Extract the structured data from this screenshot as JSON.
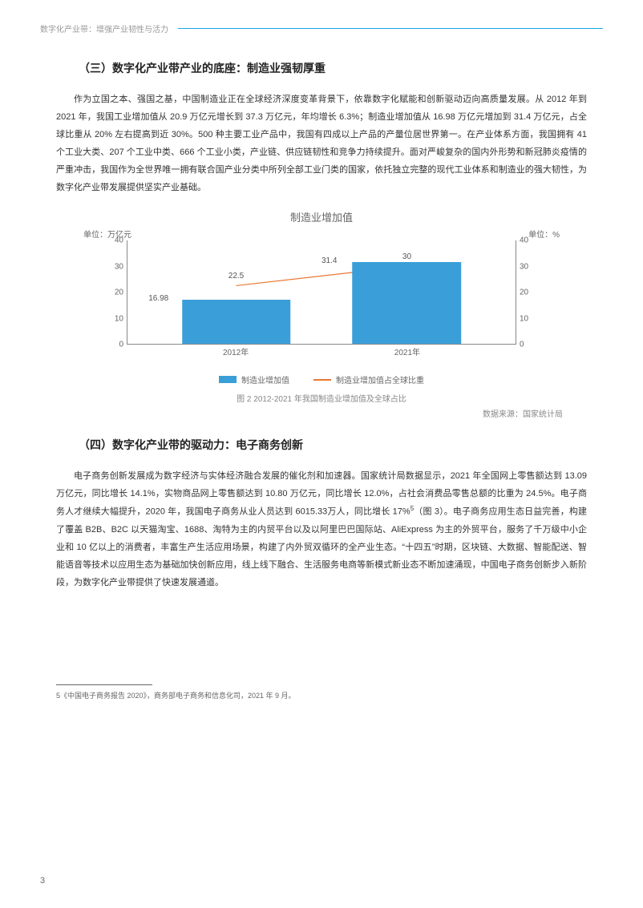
{
  "header": {
    "title": "数字化产业带：增强产业韧性与活力"
  },
  "section3": {
    "heading": "（三）数字化产业带产业的底座：制造业强韧厚重",
    "para": "作为立国之本、强国之基，中国制造业正在全球经济深度变革背景下，依靠数字化赋能和创新驱动迈向高质量发展。从 2012 年到 2021 年，我国工业增加值从 20.9 万亿元增长到 37.3 万亿元，年均增长 6.3%；制造业增加值从 16.98 万亿元增加到 31.4 万亿元，占全球比重从 20% 左右提高到近 30%。500 种主要工业产品中，我国有四成以上产品的产量位居世界第一。在产业体系方面，我国拥有 41 个工业大类、207 个工业中类、666 个工业小类，产业链、供应链韧性和竞争力持续提升。面对严峻复杂的国内外形势和新冠肺炎疫情的严重冲击，我国作为全世界唯一拥有联合国产业分类中所列全部工业门类的国家，依托独立完整的现代工业体系和制造业的强大韧性，为数字化产业带发展提供坚实产业基础。"
  },
  "chart": {
    "title": "制造业增加值",
    "unit_left_label": "单位：万亿元",
    "unit_right_label": "单位：%",
    "type": "bar+line",
    "categories": [
      "2012年",
      "2021年"
    ],
    "bar_values": [
      16.98,
      31.4
    ],
    "line_values": [
      22.5,
      30
    ],
    "ylim_left": [
      0,
      40
    ],
    "ylim_right": [
      0,
      40
    ],
    "ytick_step": 10,
    "yticks": [
      0,
      10,
      20,
      30,
      40
    ],
    "bar_color": "#3a9fd8",
    "line_color": "#e97832",
    "bar_width_pct": 28,
    "cat_positions_pct": [
      28,
      72
    ],
    "background_color": "#ffffff",
    "axis_color": "#888888",
    "text_color": "#666666",
    "legend": {
      "bar_label": "制造业增加值",
      "line_label": "制造业增加值占全球比重"
    },
    "caption": "图 2  2012-2021 年我国制造业增加值及全球占比",
    "source": "数据来源：国家统计局"
  },
  "section4": {
    "heading": "（四）数字化产业带的驱动力：电子商务创新",
    "para_html": "电子商务创新发展成为数字经济与实体经济融合发展的催化剂和加速器。国家统计局数据显示，2021 年全国网上零售额达到 13.09 万亿元，同比增长 14.1%，实物商品网上零售额达到 10.80 万亿元，同比增长 12.0%，占社会消费品零售总额的比重为 24.5%。电子商务人才继续大幅提升，2020 年，我国电子商务从业人员达到 6015.33万人，同比增长 17%<sup>5</sup>（图 3）。电子商务应用生态日益完善，构建了覆盖 B2B、B2C 以天猫淘宝、1688、淘特为主的内贸平台以及以阿里巴巴国际站、AliExpress 为主的外贸平台，服务了千万级中小企业和 10 亿以上的消费者，丰富生产生活应用场景，构建了内外贸双循环的全产业生态。“十四五”时期，区块链、大数据、智能配送、智能语音等技术以应用生态为基础加快创新应用，线上线下融合、生活服务电商等新模式新业态不断加速涌现，中国电子商务创新步入新阶段，为数字化产业带提供了快速发展通道。"
  },
  "footnote": "5《中国电子商务报告 2020》，商务部电子商务和信息化司，2021 年 9 月。",
  "page_number": "3"
}
